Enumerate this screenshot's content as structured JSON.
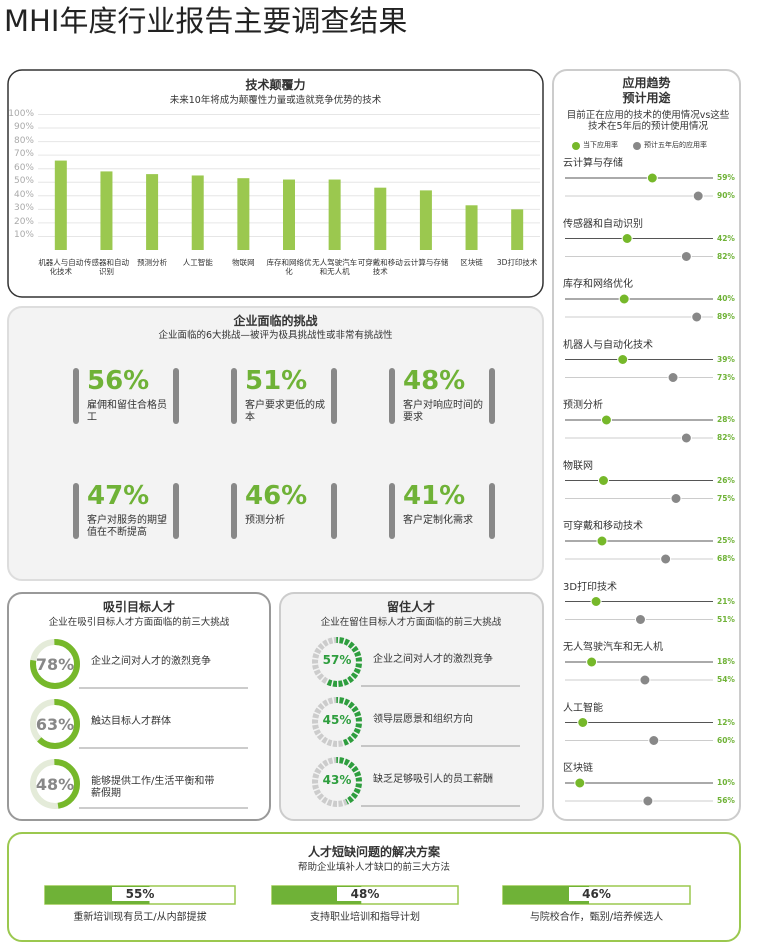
{
  "title": "MHI年度行业报告主要调查结果",
  "disruption": {
    "title": "技术颠覆力",
    "subtitle": "未来10年将成为颠覆性力量或造就竞争优势的技术",
    "ylim": [
      0,
      100
    ],
    "yticks": [
      {
        "value": 10,
        "label": "10%"
      },
      {
        "value": 20,
        "label": "20%"
      },
      {
        "value": 30,
        "label": "30%"
      },
      {
        "value": 40,
        "label": "40%"
      },
      {
        "value": 50,
        "label": "50%"
      },
      {
        "value": 60,
        "label": "60%"
      },
      {
        "value": 70,
        "label": "70%"
      },
      {
        "value": 80,
        "label": "80%"
      },
      {
        "value": 90,
        "label": "90%"
      },
      {
        "value": 100,
        "label": "100%"
      }
    ],
    "categories": [
      "机器人与自动化技术",
      "传感器和自动识别",
      "预测分析",
      "人工智能",
      "物联网",
      "库存和网络优化",
      "无人驾驶汽车和无人机",
      "可穿戴和移动技术",
      "云计算与存储",
      "区块链",
      "3D打印技术"
    ],
    "values": [
      66,
      58,
      56,
      55,
      53,
      52,
      52,
      46,
      44,
      33,
      30
    ],
    "color": "#9bc84f"
  },
  "challenges": {
    "title": "企业面临的挑战",
    "subtitle": "企业面临的6大挑战—被评为极具挑战性或非常有挑战性",
    "stats": [
      "56%",
      "51%",
      "48%",
      "47%",
      "46%",
      "41%"
    ],
    "labels": [
      "雇佣和留住合格员工",
      "客户要求更低的成本",
      "客户对响应时间的要求",
      "客户对服务的期望值在不断提高",
      "预测分析",
      "客户定制化需求"
    ]
  },
  "attract": {
    "title": "吸引目标人才",
    "subtitle": "企业在吸引目标人才方面面临的前三大挑战",
    "values": [
      78,
      63,
      48
    ],
    "value_labels": [
      "78%",
      "63%",
      "48%"
    ],
    "labels": [
      "企业之间对人才的激烈竞争",
      "触达目标人才群体",
      "能够提供工作/生活平衡和带薪假期"
    ]
  },
  "retain": {
    "title": "留住人才",
    "subtitle": "企业在留住目标人才方面面临的前三大挑战",
    "values": [
      57,
      45,
      43
    ],
    "value_labels": [
      "57%",
      "45%",
      "43%"
    ],
    "labels": [
      "企业之间对人才的激烈竞争",
      "领导层愿景和组织方向",
      "缺乏足够吸引人的员工薪酬"
    ]
  },
  "solutions": {
    "title": "人才短缺问题的解决方案",
    "subtitle": "帮助企业填补人才缺口的前三大方法",
    "values": [
      55,
      48,
      46
    ],
    "value_labels": [
      "55%",
      "48%",
      "46%"
    ],
    "labels": [
      "重新培训现有员工/从内部提拔",
      "支持职业培训和指导计划",
      "与院校合作，甄别/培养候选人"
    ]
  },
  "trends": {
    "title": "应用趋势",
    "subtitle": "预计用途",
    "description": "目前正在应用的技术的使用情况vs这些技术在5年后的预计使用情况",
    "legend": [
      "当下应用率",
      "预计五年后的应用率"
    ],
    "items": [
      {
        "name": "云计算与存储",
        "current": 59,
        "current_label": "59%",
        "future": 90,
        "future_label": "90%"
      },
      {
        "name": "传感器和自动识别",
        "current": 42,
        "current_label": "42%",
        "future": 82,
        "future_label": "82%"
      },
      {
        "name": "库存和网络优化",
        "current": 40,
        "current_label": "40%",
        "future": 89,
        "future_label": "89%"
      },
      {
        "name": "机器人与自动化技术",
        "current": 39,
        "current_label": "39%",
        "future": 73,
        "future_label": "73%"
      },
      {
        "name": "预测分析",
        "current": 28,
        "current_label": "28%",
        "future": 82,
        "future_label": "82%"
      },
      {
        "name": "物联网",
        "current": 26,
        "current_label": "26%",
        "future": 75,
        "future_label": "75%"
      },
      {
        "name": "可穿戴和移动技术",
        "current": 25,
        "current_label": "25%",
        "future": 68,
        "future_label": "68%"
      },
      {
        "name": "3D打印技术",
        "current": 21,
        "current_label": "21%",
        "future": 51,
        "future_label": "51%"
      },
      {
        "name": "无人驾驶汽车和无人机",
        "current": 18,
        "current_label": "18%",
        "future": 54,
        "future_label": "54%"
      },
      {
        "name": "人工智能",
        "current": 12,
        "current_label": "12%",
        "future": 60,
        "future_label": "60%"
      },
      {
        "name": "区块链",
        "current": 10,
        "current_label": "10%",
        "future": 56,
        "future_label": "56%"
      }
    ]
  }
}
